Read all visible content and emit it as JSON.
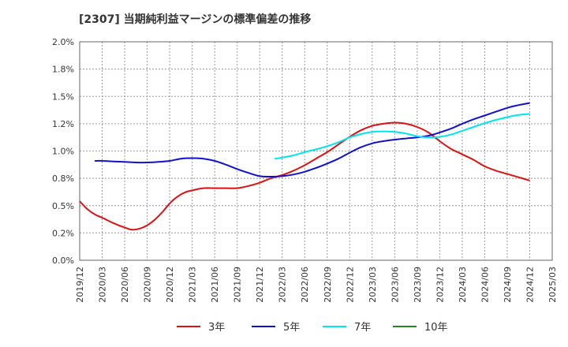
{
  "chart_data": {
    "type": "line",
    "title": "[2307]  当期純利益マージンの標準偏差の推移",
    "ylim": [
      0,
      2.0
    ],
    "y_ticks": [
      "0.0%",
      "0.2%",
      "0.5%",
      "0.8%",
      "1.0%",
      "1.2%",
      "1.5%",
      "1.8%",
      "2.0%"
    ],
    "x_ticks": [
      "2019/12",
      "2020/03",
      "2020/06",
      "2020/09",
      "2020/12",
      "2021/03",
      "2021/06",
      "2021/09",
      "2021/12",
      "2022/03",
      "2022/06",
      "2022/09",
      "2022/12",
      "2023/03",
      "2023/06",
      "2023/09",
      "2023/12",
      "2024/03",
      "2024/06",
      "2024/09",
      "2024/12",
      "2025/03"
    ],
    "grid": true,
    "legend_position": "bottom",
    "series": [
      {
        "name": "3年",
        "color": "#dd1111",
        "points": [
          [
            0,
            0.54
          ],
          [
            0.33,
            0.47
          ],
          [
            0.67,
            0.42
          ],
          [
            1,
            0.39
          ],
          [
            1.5,
            0.34
          ],
          [
            2,
            0.3
          ],
          [
            2.33,
            0.28
          ],
          [
            2.67,
            0.29
          ],
          [
            3,
            0.32
          ],
          [
            3.33,
            0.37
          ],
          [
            3.67,
            0.44
          ],
          [
            4,
            0.52
          ],
          [
            4.33,
            0.58
          ],
          [
            4.67,
            0.62
          ],
          [
            5,
            0.64
          ],
          [
            5.5,
            0.66
          ],
          [
            6,
            0.66
          ],
          [
            6.5,
            0.66
          ],
          [
            7,
            0.66
          ],
          [
            7.5,
            0.68
          ],
          [
            8,
            0.71
          ],
          [
            8.5,
            0.75
          ],
          [
            9,
            0.78
          ],
          [
            9.5,
            0.82
          ],
          [
            10,
            0.87
          ],
          [
            10.5,
            0.93
          ],
          [
            11,
            0.99
          ],
          [
            11.5,
            1.06
          ],
          [
            12,
            1.13
          ],
          [
            12.5,
            1.19
          ],
          [
            13,
            1.23
          ],
          [
            13.5,
            1.25
          ],
          [
            14,
            1.26
          ],
          [
            14.5,
            1.25
          ],
          [
            15,
            1.22
          ],
          [
            15.5,
            1.17
          ],
          [
            16,
            1.09
          ],
          [
            16.5,
            1.02
          ],
          [
            17,
            0.97
          ],
          [
            17.5,
            0.92
          ],
          [
            18,
            0.86
          ],
          [
            18.5,
            0.82
          ],
          [
            19,
            0.79
          ],
          [
            19.5,
            0.76
          ],
          [
            20,
            0.73
          ]
        ]
      },
      {
        "name": "5年",
        "color": "#1111cc",
        "points": [
          [
            0.67,
            0.91
          ],
          [
            1,
            0.91
          ],
          [
            1.5,
            0.905
          ],
          [
            2,
            0.9
          ],
          [
            2.5,
            0.895
          ],
          [
            3,
            0.895
          ],
          [
            3.5,
            0.9
          ],
          [
            4,
            0.91
          ],
          [
            4.5,
            0.93
          ],
          [
            5,
            0.935
          ],
          [
            5.5,
            0.93
          ],
          [
            6,
            0.91
          ],
          [
            6.5,
            0.875
          ],
          [
            7,
            0.835
          ],
          [
            7.5,
            0.8
          ],
          [
            8,
            0.77
          ],
          [
            8.5,
            0.765
          ],
          [
            9,
            0.77
          ],
          [
            9.5,
            0.785
          ],
          [
            10,
            0.81
          ],
          [
            10.5,
            0.845
          ],
          [
            11,
            0.885
          ],
          [
            11.5,
            0.93
          ],
          [
            12,
            0.985
          ],
          [
            12.5,
            1.035
          ],
          [
            13,
            1.07
          ],
          [
            13.5,
            1.09
          ],
          [
            14,
            1.105
          ],
          [
            14.5,
            1.115
          ],
          [
            15,
            1.125
          ],
          [
            15.5,
            1.14
          ],
          [
            16,
            1.17
          ],
          [
            16.5,
            1.205
          ],
          [
            17,
            1.25
          ],
          [
            17.5,
            1.29
          ],
          [
            18,
            1.325
          ],
          [
            18.5,
            1.36
          ],
          [
            19,
            1.395
          ],
          [
            19.5,
            1.42
          ],
          [
            20,
            1.44
          ]
        ]
      },
      {
        "name": "7年",
        "color": "#00e5ee",
        "points": [
          [
            8.67,
            0.93
          ],
          [
            9,
            0.94
          ],
          [
            9.5,
            0.96
          ],
          [
            10,
            0.99
          ],
          [
            10.5,
            1.015
          ],
          [
            11,
            1.045
          ],
          [
            11.5,
            1.08
          ],
          [
            12,
            1.125
          ],
          [
            12.5,
            1.155
          ],
          [
            13,
            1.175
          ],
          [
            13.5,
            1.18
          ],
          [
            14,
            1.175
          ],
          [
            14.5,
            1.16
          ],
          [
            15,
            1.135
          ],
          [
            15.5,
            1.125
          ],
          [
            16,
            1.13
          ],
          [
            16.5,
            1.15
          ],
          [
            17,
            1.185
          ],
          [
            17.5,
            1.22
          ],
          [
            18,
            1.255
          ],
          [
            18.5,
            1.285
          ],
          [
            19,
            1.31
          ],
          [
            19.5,
            1.33
          ],
          [
            20,
            1.34
          ]
        ]
      },
      {
        "name": "10年",
        "color": "#228822",
        "points": []
      }
    ]
  }
}
